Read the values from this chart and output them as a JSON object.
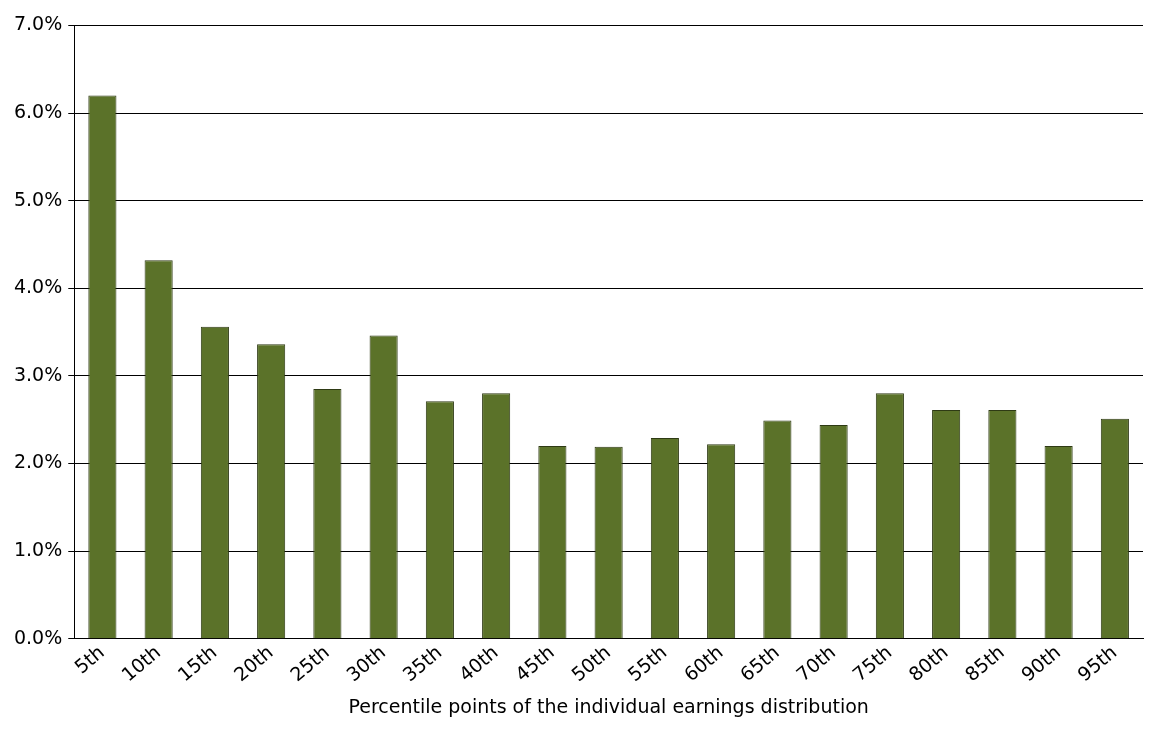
{
  "chart_data": {
    "type": "bar",
    "xlabel": "Percentile points of the individual earnings distribution",
    "categories": [
      "5th",
      "10th",
      "15th",
      "20th",
      "25th",
      "30th",
      "35th",
      "40th",
      "45th",
      "50th",
      "55th",
      "60th",
      "65th",
      "70th",
      "75th",
      "80th",
      "85th",
      "90th",
      "95th"
    ],
    "values": [
      6.2,
      4.32,
      3.56,
      3.36,
      2.85,
      3.46,
      2.71,
      2.8,
      2.2,
      2.19,
      2.29,
      2.22,
      2.49,
      2.44,
      2.8,
      2.61,
      2.61,
      2.2,
      2.51
    ],
    "color": "#5b7229",
    "ylim": [
      0,
      7
    ],
    "yticks": [
      {
        "value": 0,
        "label": "0.0%"
      },
      {
        "value": 1,
        "label": "1.0%"
      },
      {
        "value": 2,
        "label": "2.0%"
      },
      {
        "value": 3,
        "label": "3.0%"
      },
      {
        "value": 4,
        "label": "4.0%"
      },
      {
        "value": 5,
        "label": "5.0%"
      },
      {
        "value": 6,
        "label": "6.0%"
      },
      {
        "value": 7,
        "label": "7.0%"
      }
    ],
    "grid": "y",
    "legend": false
  }
}
